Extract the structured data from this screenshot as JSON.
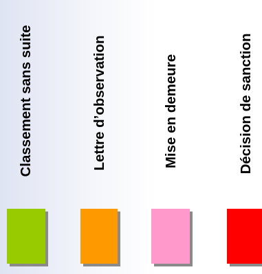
{
  "legend": {
    "items": [
      {
        "label": "Classement  sans suite",
        "color": "#99cc00"
      },
      {
        "label": "Lettre d’observation",
        "color": "#ff9900"
      },
      {
        "label": "Mise en demeure",
        "color": "#ff99cc"
      },
      {
        "label": "Décision de sanction",
        "color": "#ff0000"
      }
    ]
  }
}
